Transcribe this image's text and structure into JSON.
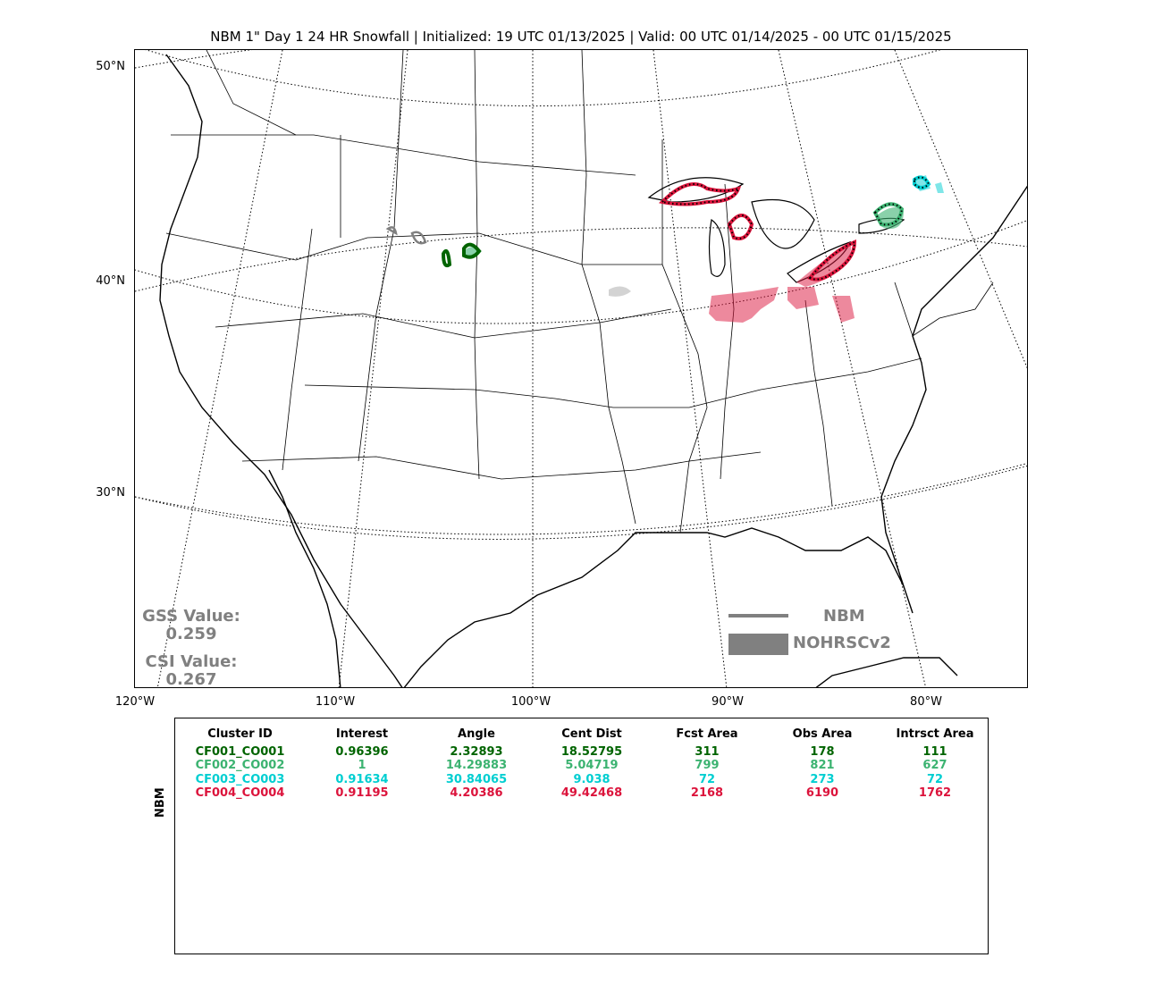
{
  "title": "NBM 1\" Day 1 24 HR Snowfall | Initialized: 19 UTC 01/13/2025 | Valid: 00 UTC 01/14/2025 - 00 UTC 01/15/2025",
  "map": {
    "lat_labels": [
      "50°N",
      "40°N",
      "30°N"
    ],
    "lon_labels": [
      "120°W",
      "110°W",
      "100°W",
      "90°W",
      "80°W"
    ],
    "scores": {
      "gss_label": "GSS Value:",
      "gss_value": "0.259",
      "csi_label": "CSI Value:",
      "csi_value": "0.267"
    },
    "legend": {
      "forecast_label": "NBM",
      "observed_label": "NOHRSCv2"
    },
    "colors": {
      "cluster1": "#006400",
      "cluster2": "#3cb371",
      "cluster3": "#00ced1",
      "cluster4": "#dc143c",
      "unmatched_obs": "#d3d3d3",
      "unmatched_fcst": "#808080"
    }
  },
  "table": {
    "row_label": "NBM",
    "headers": [
      "Cluster ID",
      "Interest",
      "Angle",
      "Cent Dist",
      "Fcst Area",
      "Obs Area",
      "Intrsct Area"
    ],
    "rows": [
      {
        "color": "#006400",
        "cells": [
          "CF001_CO001",
          "0.96396",
          "2.32893",
          "18.52795",
          "311",
          "178",
          "111"
        ]
      },
      {
        "color": "#3cb371",
        "cells": [
          "CF002_CO002",
          "1",
          "14.29883",
          "5.04719",
          "799",
          "821",
          "627"
        ]
      },
      {
        "color": "#00ced1",
        "cells": [
          "CF003_CO003",
          "0.91634",
          "30.84065",
          "9.038",
          "72",
          "273",
          "72"
        ]
      },
      {
        "color": "#dc143c",
        "cells": [
          "CF004_CO004",
          "0.91195",
          "4.20386",
          "49.42468",
          "2168",
          "6190",
          "1762"
        ]
      }
    ]
  }
}
